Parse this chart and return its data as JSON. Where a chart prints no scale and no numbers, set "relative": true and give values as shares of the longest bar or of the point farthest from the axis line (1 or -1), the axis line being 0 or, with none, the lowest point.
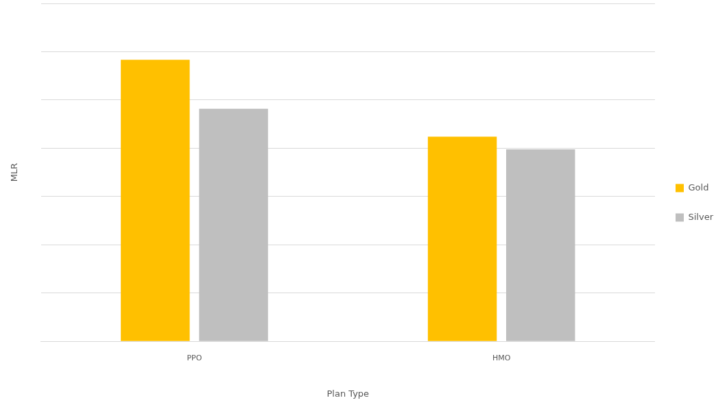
{
  "chart_data": {
    "type": "bar",
    "xlabel": "Plan Type",
    "ylabel": "MLR",
    "categories": [
      "PPO",
      "HMO"
    ],
    "relative": true,
    "grid": "y",
    "legend": "right",
    "series": [
      {
        "name": "Gold",
        "color": "#ffc000",
        "values": [
          1,
          0.727
        ]
      },
      {
        "name": "Silver",
        "color": "#bfbfbf",
        "values": [
          0.826,
          0.682
        ]
      }
    ]
  }
}
